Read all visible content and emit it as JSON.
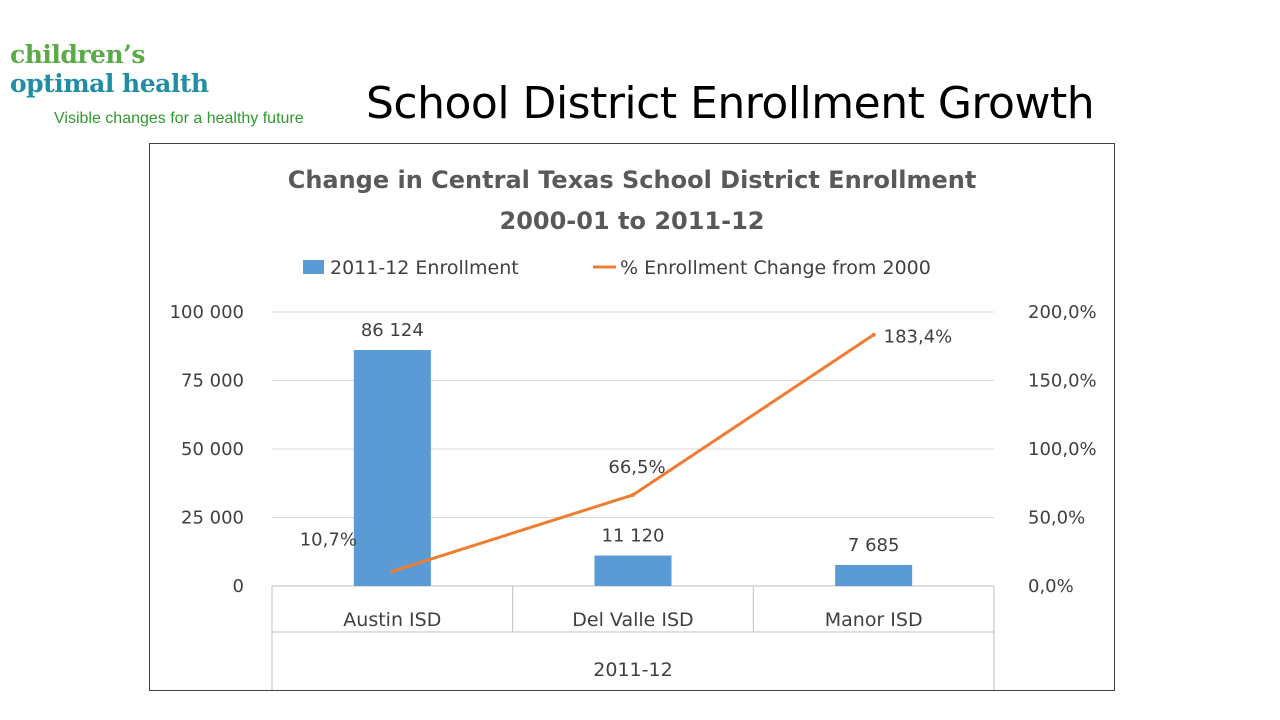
{
  "logo": {
    "line1": "children’s",
    "line2": "optimal health",
    "tagline": "Visible changes for a healthy future"
  },
  "page_title": "School District Enrollment Growth",
  "colors": {
    "bar": "#5b9bd5",
    "line": "#ed7d31",
    "title_text": "#595959",
    "axis_text": "#404040",
    "gridline": "#d9d9d9",
    "logo_green": "#5aaa4a",
    "logo_teal": "#1f8ea3"
  },
  "chart_data": {
    "type": "bar",
    "title": "Change in Central Texas School  District Enrollment",
    "subtitle": "2000-01 to 2011-12",
    "categories": [
      "Austin ISD",
      "Del Valle ISD",
      "Manor ISD"
    ],
    "category_group_label": "2011-12",
    "series": [
      {
        "name": "2011-12 Enrollment",
        "type": "bar",
        "axis": "primary",
        "values": [
          86124,
          11120,
          7685
        ],
        "labels": [
          "86 124",
          "11 120",
          "7 685"
        ]
      },
      {
        "name": "% Enrollment Change from 2000",
        "type": "line",
        "axis": "secondary",
        "values": [
          10.7,
          66.5,
          183.4
        ],
        "labels": [
          "10,7%",
          "66,5%",
          "183,4%"
        ]
      }
    ],
    "y_axis": {
      "ylim": [
        0,
        100000
      ],
      "ticks": [
        0,
        25000,
        50000,
        75000,
        100000
      ],
      "tick_labels": [
        "0",
        "25 000",
        "50 000",
        "75 000",
        "100 000"
      ]
    },
    "y2_axis": {
      "ylim": [
        0,
        200
      ],
      "ticks": [
        0,
        50,
        100,
        150,
        200
      ],
      "tick_labels": [
        "0,0%",
        "50,0%",
        "100,0%",
        "150,0%",
        "200,0%"
      ]
    },
    "grid": true,
    "legend": "top"
  }
}
